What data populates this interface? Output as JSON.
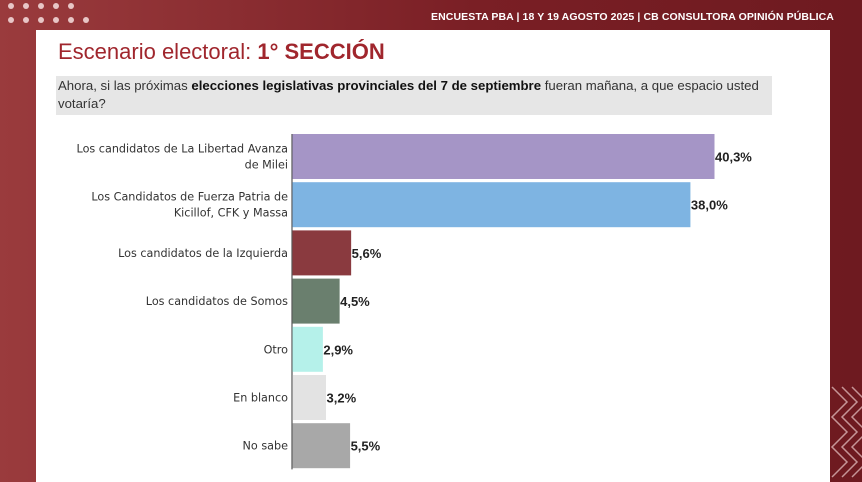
{
  "header": {
    "text": "ENCUESTA PBA | 18 Y 19  AGOSTO 2025 | CB CONSULTORA OPINIÓN PÚBLICA"
  },
  "title": {
    "prefix": "Escenario electoral: ",
    "highlight": "1° SECCIÓN"
  },
  "question": {
    "before": "Ahora, si las próximas ",
    "bold": "elecciones legislativas provinciales del 7 de septiembre",
    "after": " fueran mañana, a que espacio usted votaría?"
  },
  "chart_data": {
    "type": "bar",
    "orientation": "horizontal",
    "categories": [
      [
        "Los candidatos de La Libertad Avanza",
        "de Milei"
      ],
      [
        "Los Candidatos de Fuerza Patria de",
        "Kicillof, CFK y Massa"
      ],
      [
        "Los candidatos de la Izquierda"
      ],
      [
        "Los candidatos de Somos"
      ],
      [
        "Otro"
      ],
      [
        "En blanco"
      ],
      [
        "No sabe"
      ]
    ],
    "values": [
      40.3,
      38.0,
      5.6,
      4.5,
      2.9,
      3.2,
      5.5
    ],
    "value_labels": [
      "40,3%",
      "38,0%",
      "5,6%",
      "4,5%",
      "2,9%",
      "3,2%",
      "5,5%"
    ],
    "colors": [
      "#a595c6",
      "#7eb4e2",
      "#8a3a3f",
      "#6a7f6e",
      "#b5f1ea",
      "#e3e3e3",
      "#a8a8a8"
    ],
    "xlim": [
      0,
      40.3
    ],
    "grid": false,
    "legend": "none"
  }
}
